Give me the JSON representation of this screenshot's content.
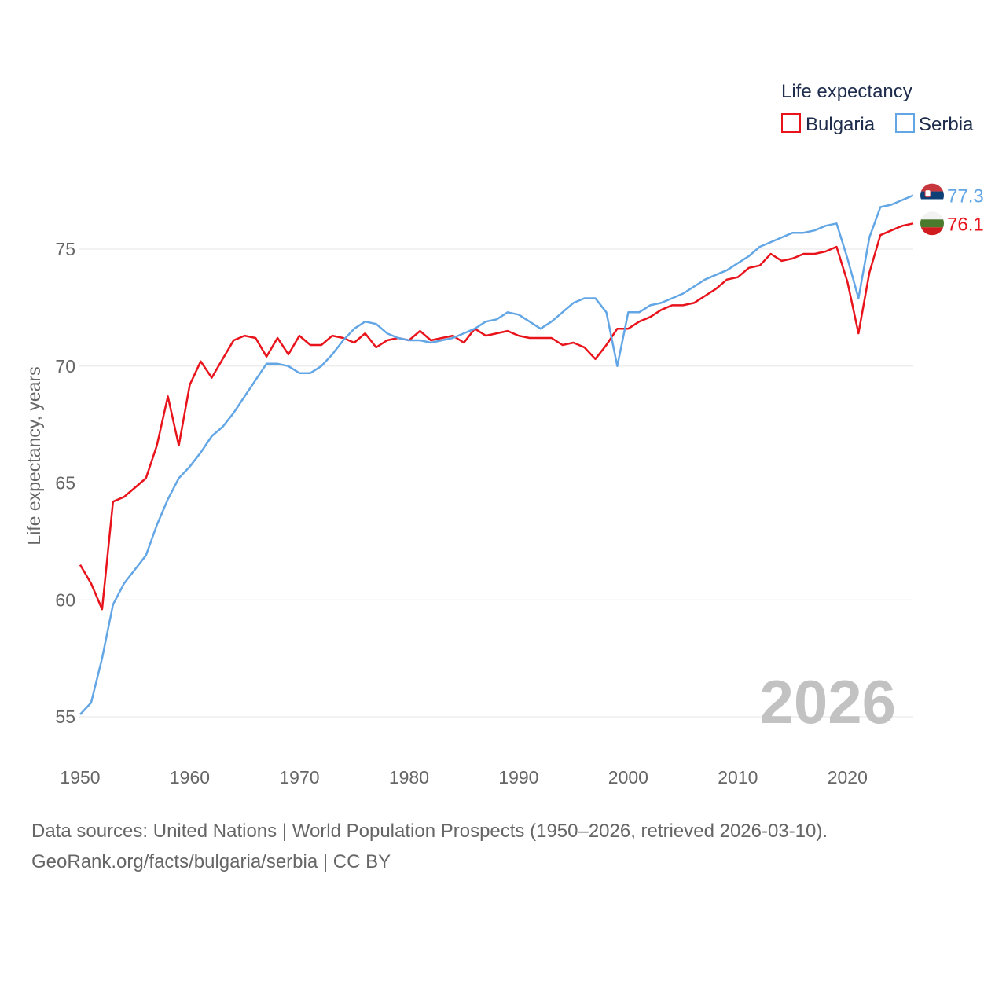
{
  "chart_data": {
    "type": "line",
    "ylabel": "Life expectancy, years",
    "legend_title": "Life expectancy",
    "legend_position": "top-right",
    "watermark_year": "2026",
    "xlim": [
      1950,
      2026
    ],
    "ylim": [
      53.8,
      78.5
    ],
    "x_ticks": [
      1950,
      1960,
      1970,
      1980,
      1990,
      2000,
      2010,
      2020
    ],
    "y_ticks": [
      55,
      60,
      65,
      70,
      75
    ],
    "x": [
      1950,
      1951,
      1952,
      1953,
      1954,
      1955,
      1956,
      1957,
      1958,
      1959,
      1960,
      1961,
      1962,
      1963,
      1964,
      1965,
      1966,
      1967,
      1968,
      1969,
      1970,
      1971,
      1972,
      1973,
      1974,
      1975,
      1976,
      1977,
      1978,
      1979,
      1980,
      1981,
      1982,
      1983,
      1984,
      1985,
      1986,
      1987,
      1988,
      1989,
      1990,
      1991,
      1992,
      1993,
      1994,
      1995,
      1996,
      1997,
      1998,
      1999,
      2000,
      2001,
      2002,
      2003,
      2004,
      2005,
      2006,
      2007,
      2008,
      2009,
      2010,
      2011,
      2012,
      2013,
      2014,
      2015,
      2016,
      2017,
      2018,
      2019,
      2020,
      2021,
      2022,
      2023,
      2024,
      2025,
      2026
    ],
    "series": [
      {
        "name": "Bulgaria",
        "color": "#e8131b",
        "end_label": "76.1",
        "values": [
          61.5,
          60.7,
          59.6,
          64.2,
          64.4,
          64.8,
          65.2,
          66.6,
          68.7,
          66.6,
          69.2,
          70.2,
          69.5,
          70.3,
          71.1,
          71.3,
          71.2,
          70.4,
          71.2,
          70.5,
          71.3,
          70.9,
          70.9,
          71.3,
          71.2,
          71.0,
          71.4,
          70.8,
          71.1,
          71.2,
          71.1,
          71.5,
          71.1,
          71.2,
          71.3,
          71.0,
          71.6,
          71.3,
          71.4,
          71.5,
          71.3,
          71.2,
          71.2,
          71.2,
          70.9,
          71.0,
          70.8,
          70.3,
          70.9,
          71.6,
          71.6,
          71.9,
          72.1,
          72.4,
          72.6,
          72.6,
          72.7,
          73.0,
          73.3,
          73.7,
          73.8,
          74.2,
          74.3,
          74.8,
          74.5,
          74.6,
          74.8,
          74.8,
          74.9,
          75.1,
          73.6,
          71.4,
          74.0,
          75.6,
          75.8,
          76.0,
          76.1
        ]
      },
      {
        "name": "Serbia",
        "color": "#63a6e6",
        "end_label": "77.3",
        "values": [
          55.1,
          55.6,
          57.5,
          59.8,
          60.7,
          61.3,
          61.9,
          63.2,
          64.3,
          65.2,
          65.7,
          66.3,
          67.0,
          67.4,
          68.0,
          68.7,
          69.4,
          70.1,
          70.1,
          70.0,
          69.7,
          69.7,
          70.0,
          70.5,
          71.1,
          71.6,
          71.9,
          71.8,
          71.4,
          71.2,
          71.1,
          71.1,
          71.0,
          71.1,
          71.2,
          71.4,
          71.6,
          71.9,
          72.0,
          72.3,
          72.2,
          71.9,
          71.6,
          71.9,
          72.3,
          72.7,
          72.9,
          72.9,
          72.3,
          70.0,
          72.3,
          72.3,
          72.6,
          72.7,
          72.9,
          73.1,
          73.4,
          73.7,
          73.9,
          74.1,
          74.4,
          74.7,
          75.1,
          75.3,
          75.5,
          75.7,
          75.7,
          75.8,
          76.0,
          76.1,
          74.6,
          72.9,
          75.5,
          76.8,
          76.9,
          77.1,
          77.3
        ]
      }
    ]
  },
  "footer": {
    "source_line": "Data sources: United Nations | World Population Prospects (1950–2026, retrieved 2026-03-10).",
    "attribution_line": "GeoRank.org/facts/bulgaria/serbia | CC BY"
  },
  "icons": {
    "bulgaria_flag": "bulgaria-flag-icon",
    "serbia_flag": "serbia-flag-icon"
  }
}
